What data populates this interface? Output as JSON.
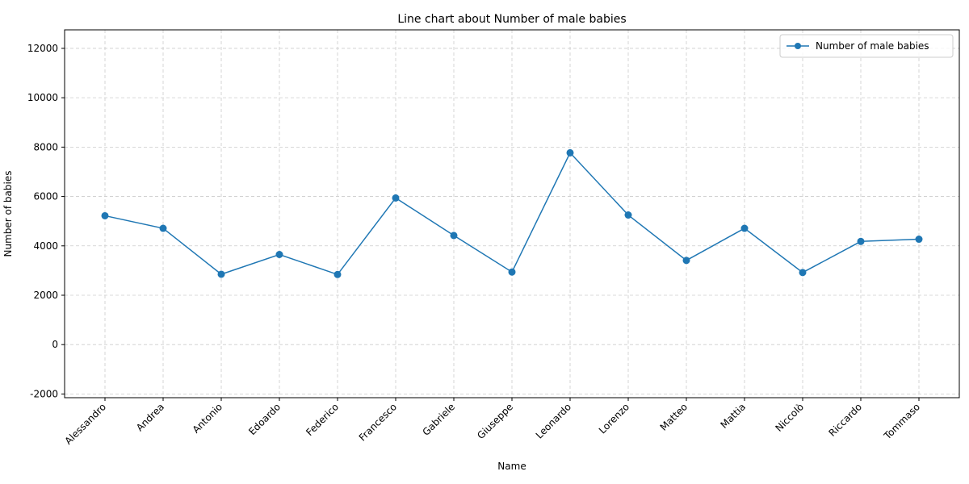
{
  "chart_data": {
    "type": "line",
    "title": "Line chart about Number of male babies",
    "xlabel": "Name",
    "ylabel": "Number of babies",
    "categories": [
      "Alessandro",
      "Andrea",
      "Antonio",
      "Edoardo",
      "Federico",
      "Francesco",
      "Gabriele",
      "Giuseppe",
      "Leonardo",
      "Lorenzo",
      "Matteo",
      "Mattia",
      "Niccolò",
      "Riccardo",
      "Tommaso"
    ],
    "series": [
      {
        "name": "Number of male babies",
        "values": [
          5220,
          4710,
          2850,
          3650,
          2840,
          5940,
          4420,
          2940,
          7770,
          5250,
          3410,
          4710,
          2920,
          4180,
          4270
        ]
      }
    ],
    "ylim": [
      -2150,
      12750
    ],
    "yticks": [
      -2000,
      0,
      2000,
      4000,
      6000,
      8000,
      10000,
      12000
    ],
    "grid": true,
    "legend_position": "top-right",
    "colors": {
      "line": "#1f77b4",
      "grid": "#cccccc"
    }
  }
}
